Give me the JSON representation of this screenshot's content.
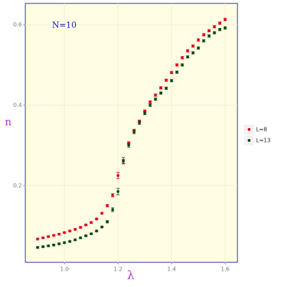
{
  "chart_data": {
    "type": "scatter",
    "annotation": "N=10",
    "x_label": "λ",
    "y_label": "n",
    "x": [
      0.9,
      0.92,
      0.94,
      0.96,
      0.98,
      1.0,
      1.02,
      1.04,
      1.06,
      1.08,
      1.1,
      1.12,
      1.14,
      1.16,
      1.18,
      1.2,
      1.22,
      1.24,
      1.26,
      1.28,
      1.3,
      1.32,
      1.34,
      1.36,
      1.38,
      1.4,
      1.42,
      1.44,
      1.46,
      1.48,
      1.5,
      1.52,
      1.54,
      1.56,
      1.58,
      1.6
    ],
    "series": [
      {
        "name": "L=8",
        "color": "#e0001a",
        "values": [
          0.067,
          0.07,
          0.073,
          0.076,
          0.079,
          0.083,
          0.087,
          0.091,
          0.096,
          0.102,
          0.108,
          0.117,
          0.131,
          0.15,
          0.176,
          0.225,
          0.26,
          0.306,
          0.337,
          0.36,
          0.385,
          0.408,
          0.425,
          0.443,
          0.462,
          0.481,
          0.5,
          0.518,
          0.535,
          0.547,
          0.562,
          0.575,
          0.585,
          0.595,
          0.604,
          0.613
        ],
        "errors": [
          0.002,
          0.002,
          0.002,
          0.002,
          0.002,
          0.002,
          0.002,
          0.002,
          0.002,
          0.002,
          0.002,
          0.002,
          0.002,
          0.003,
          0.004,
          0.008,
          0.005,
          0.003,
          0.003,
          0.003,
          0.003,
          0.003,
          0.003,
          0.003,
          0.003,
          0.003,
          0.003,
          0.003,
          0.003,
          0.003,
          0.003,
          0.003,
          0.003,
          0.003,
          0.003,
          0.003
        ]
      },
      {
        "name": "L=13",
        "color": "#0b4a10",
        "values": [
          0.046,
          0.048,
          0.05,
          0.052,
          0.055,
          0.058,
          0.061,
          0.065,
          0.07,
          0.075,
          0.08,
          0.087,
          0.097,
          0.11,
          0.14,
          0.185,
          0.262,
          0.3,
          0.333,
          0.356,
          0.38,
          0.4,
          0.415,
          0.43,
          0.442,
          0.461,
          0.482,
          0.5,
          0.52,
          0.53,
          0.542,
          0.56,
          0.572,
          0.58,
          0.588,
          0.592
        ],
        "errors": [
          0.002,
          0.002,
          0.002,
          0.002,
          0.002,
          0.002,
          0.002,
          0.002,
          0.002,
          0.002,
          0.002,
          0.002,
          0.002,
          0.003,
          0.005,
          0.008,
          0.008,
          0.005,
          0.004,
          0.004,
          0.004,
          0.003,
          0.003,
          0.003,
          0.003,
          0.003,
          0.003,
          0.003,
          0.003,
          0.003,
          0.003,
          0.003,
          0.003,
          0.003,
          0.003,
          0.003
        ]
      }
    ],
    "xlim": [
      0.854,
      1.646
    ],
    "ylim": [
      0.009,
      0.653
    ],
    "xticks": [
      {
        "value": 1.0,
        "label": "1.0"
      },
      1.2,
      1.4,
      1.6
    ],
    "yticks": [
      0.2,
      0.4,
      0.6
    ],
    "grid": true,
    "legend": "right"
  }
}
